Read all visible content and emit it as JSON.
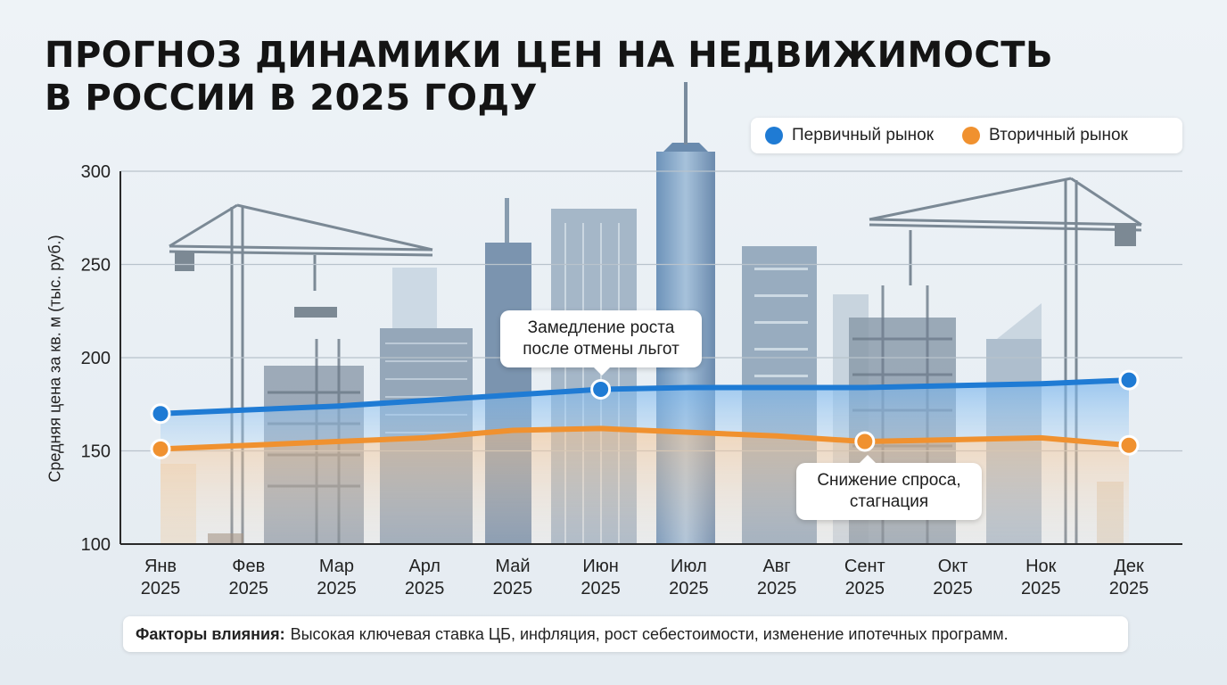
{
  "title": {
    "line1": "ПРОГНОЗ ДИНАМИКИ ЦЕН НА НЕДВИЖИМОСТЬ",
    "line2": "В РОССИИ В 2025 ГОДУ"
  },
  "legend": {
    "primary_label": "Первичный рынок",
    "secondary_label": "Вторичный рынок"
  },
  "colors": {
    "primary": "#1f7bd4",
    "secondary": "#f0912f"
  },
  "callouts": {
    "top_line1": "Замедление роста",
    "top_line2": "после отмены льгот",
    "bottom_line1": "Снижение спроса,",
    "bottom_line2": "стагнация"
  },
  "factors": {
    "label": "Факторы влияния:",
    "text": "Высокая ключевая ставка ЦБ, инфляция, рост себестоимости, изменение ипотечных программ."
  },
  "chart_data": {
    "type": "line",
    "ylabel": "Средняя цена за кв. м (тыс. руб.)",
    "xlabel": "",
    "ylim": [
      100,
      300
    ],
    "yticks": [
      100,
      150,
      200,
      250,
      300
    ],
    "grid": true,
    "legend_position": "top-right",
    "categories": [
      [
        "Янв",
        "2025"
      ],
      [
        "Фев",
        "2025"
      ],
      [
        "Мар",
        "2025"
      ],
      [
        "Арл",
        "2025"
      ],
      [
        "Май",
        "2025"
      ],
      [
        "Июн",
        "2025"
      ],
      [
        "Июл",
        "2025"
      ],
      [
        "Авг",
        "2025"
      ],
      [
        "Сент",
        "2025"
      ],
      [
        "Окт",
        "2025"
      ],
      [
        "Нок",
        "2025"
      ],
      [
        "Дек",
        "2025"
      ]
    ],
    "series": [
      {
        "name": "Первичный рынок",
        "values": [
          170,
          172,
          174,
          177,
          180,
          183,
          184,
          184,
          184,
          185,
          186,
          188
        ],
        "markers": [
          0,
          5,
          11
        ]
      },
      {
        "name": "Вторичный рынок",
        "values": [
          151,
          153,
          155,
          157,
          161,
          162,
          160,
          158,
          155,
          156,
          157,
          153
        ],
        "markers": [
          0,
          8,
          11
        ]
      }
    ]
  }
}
